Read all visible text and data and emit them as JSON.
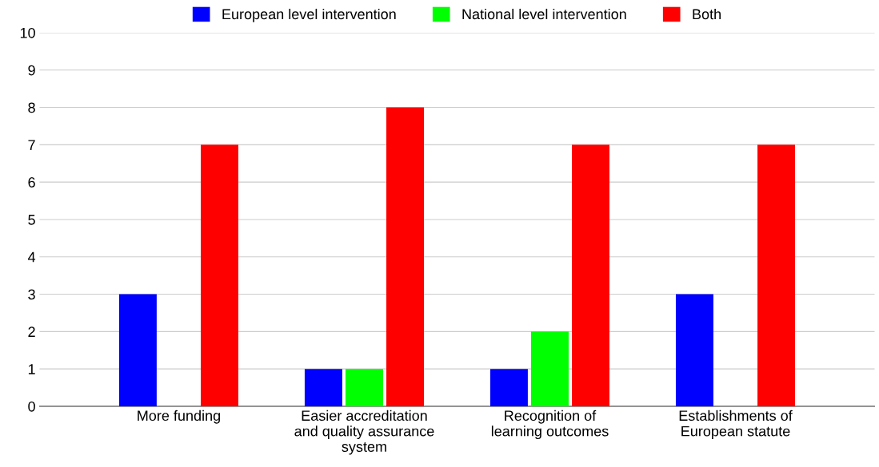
{
  "chart_data": {
    "type": "bar",
    "categories": [
      "More funding",
      "Easier accreditation\nand quality assurance\nsystem",
      "Recognition of\nlearning outcomes",
      "Establishments of\nEuropean statute"
    ],
    "series": [
      {
        "name": "European level intervention",
        "color": "#0000ff",
        "values": [
          3,
          1,
          1,
          3
        ]
      },
      {
        "name": "National level intervention",
        "color": "#00ff00",
        "values": [
          0,
          1,
          2,
          0
        ]
      },
      {
        "name": "Both",
        "color": "#ff0000",
        "values": [
          7,
          8,
          7,
          7
        ]
      }
    ],
    "ylim": [
      0,
      10
    ],
    "yticks": [
      0,
      1,
      2,
      3,
      4,
      5,
      6,
      7,
      8,
      9,
      10
    ],
    "grid": "y",
    "legend": "top"
  }
}
